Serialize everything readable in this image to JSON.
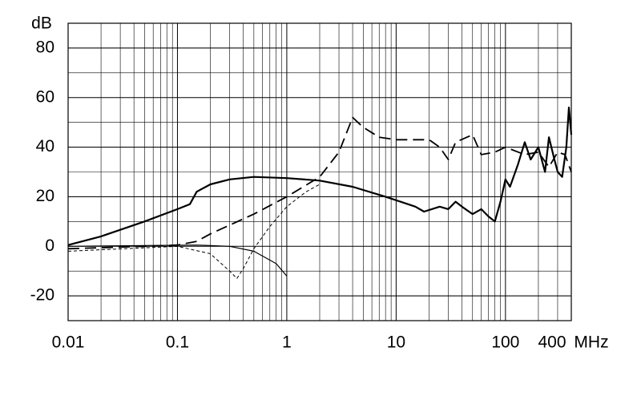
{
  "chart_data": {
    "type": "line",
    "y_unit": "dB",
    "x_unit": "MHz",
    "xscale": "log",
    "grid": true,
    "xlim": [
      0.01,
      400
    ],
    "xticks": [
      0.01,
      0.1,
      1,
      10,
      100,
      400
    ],
    "ylim": [
      -30,
      90
    ],
    "yticks": [
      -20,
      0,
      20,
      40,
      60,
      80
    ],
    "series": [
      {
        "color": "#000000",
        "dash": "solid",
        "width": 2.2,
        "x": [
          0.01,
          0.02,
          0.05,
          0.1,
          0.13,
          0.15,
          0.2,
          0.3,
          0.5,
          1,
          2,
          4,
          8,
          15,
          18,
          25,
          30,
          35,
          40,
          50,
          60,
          70,
          80,
          90,
          100,
          110,
          130,
          150,
          170,
          200,
          230,
          250,
          280,
          300,
          330,
          360,
          380,
          400
        ],
        "values": [
          0.5,
          4,
          10,
          15,
          17,
          22,
          25,
          27,
          28,
          27.5,
          26.5,
          24,
          20,
          16,
          14,
          16,
          15,
          18,
          16,
          13,
          15,
          12,
          10,
          18,
          27,
          24,
          33,
          42,
          35,
          40,
          30,
          44,
          35,
          30,
          28,
          40,
          56,
          45
        ]
      },
      {
        "color": "#000000",
        "dash": "long",
        "width": 1.8,
        "x": [
          0.01,
          0.05,
          0.1,
          0.15,
          0.2,
          0.5,
          1,
          2,
          3,
          4,
          5,
          7,
          10,
          20,
          25,
          30,
          35,
          50,
          60,
          80,
          100,
          150,
          200,
          250,
          300,
          350,
          400
        ],
        "values": [
          -1,
          0,
          0.5,
          2,
          5,
          13,
          20,
          28,
          38,
          52,
          48,
          44,
          43,
          43,
          40,
          35,
          42,
          45,
          37,
          38,
          40,
          37,
          38,
          32,
          38,
          37,
          30
        ]
      },
      {
        "color": "#000000",
        "dash": "short",
        "width": 1,
        "x": [
          0.01,
          0.1,
          0.2,
          0.3,
          0.35,
          0.4,
          0.5,
          0.7,
          1,
          1.5,
          2
        ],
        "values": [
          -2,
          0,
          -3,
          -10,
          -13,
          -9,
          -1,
          8,
          16,
          22,
          25
        ]
      },
      {
        "color": "#000000",
        "dash": "solid",
        "width": 1.2,
        "x": [
          0.01,
          0.15,
          0.3,
          0.5,
          0.8,
          1
        ],
        "values": [
          0,
          0.5,
          0,
          -2,
          -7,
          -12
        ]
      }
    ]
  }
}
